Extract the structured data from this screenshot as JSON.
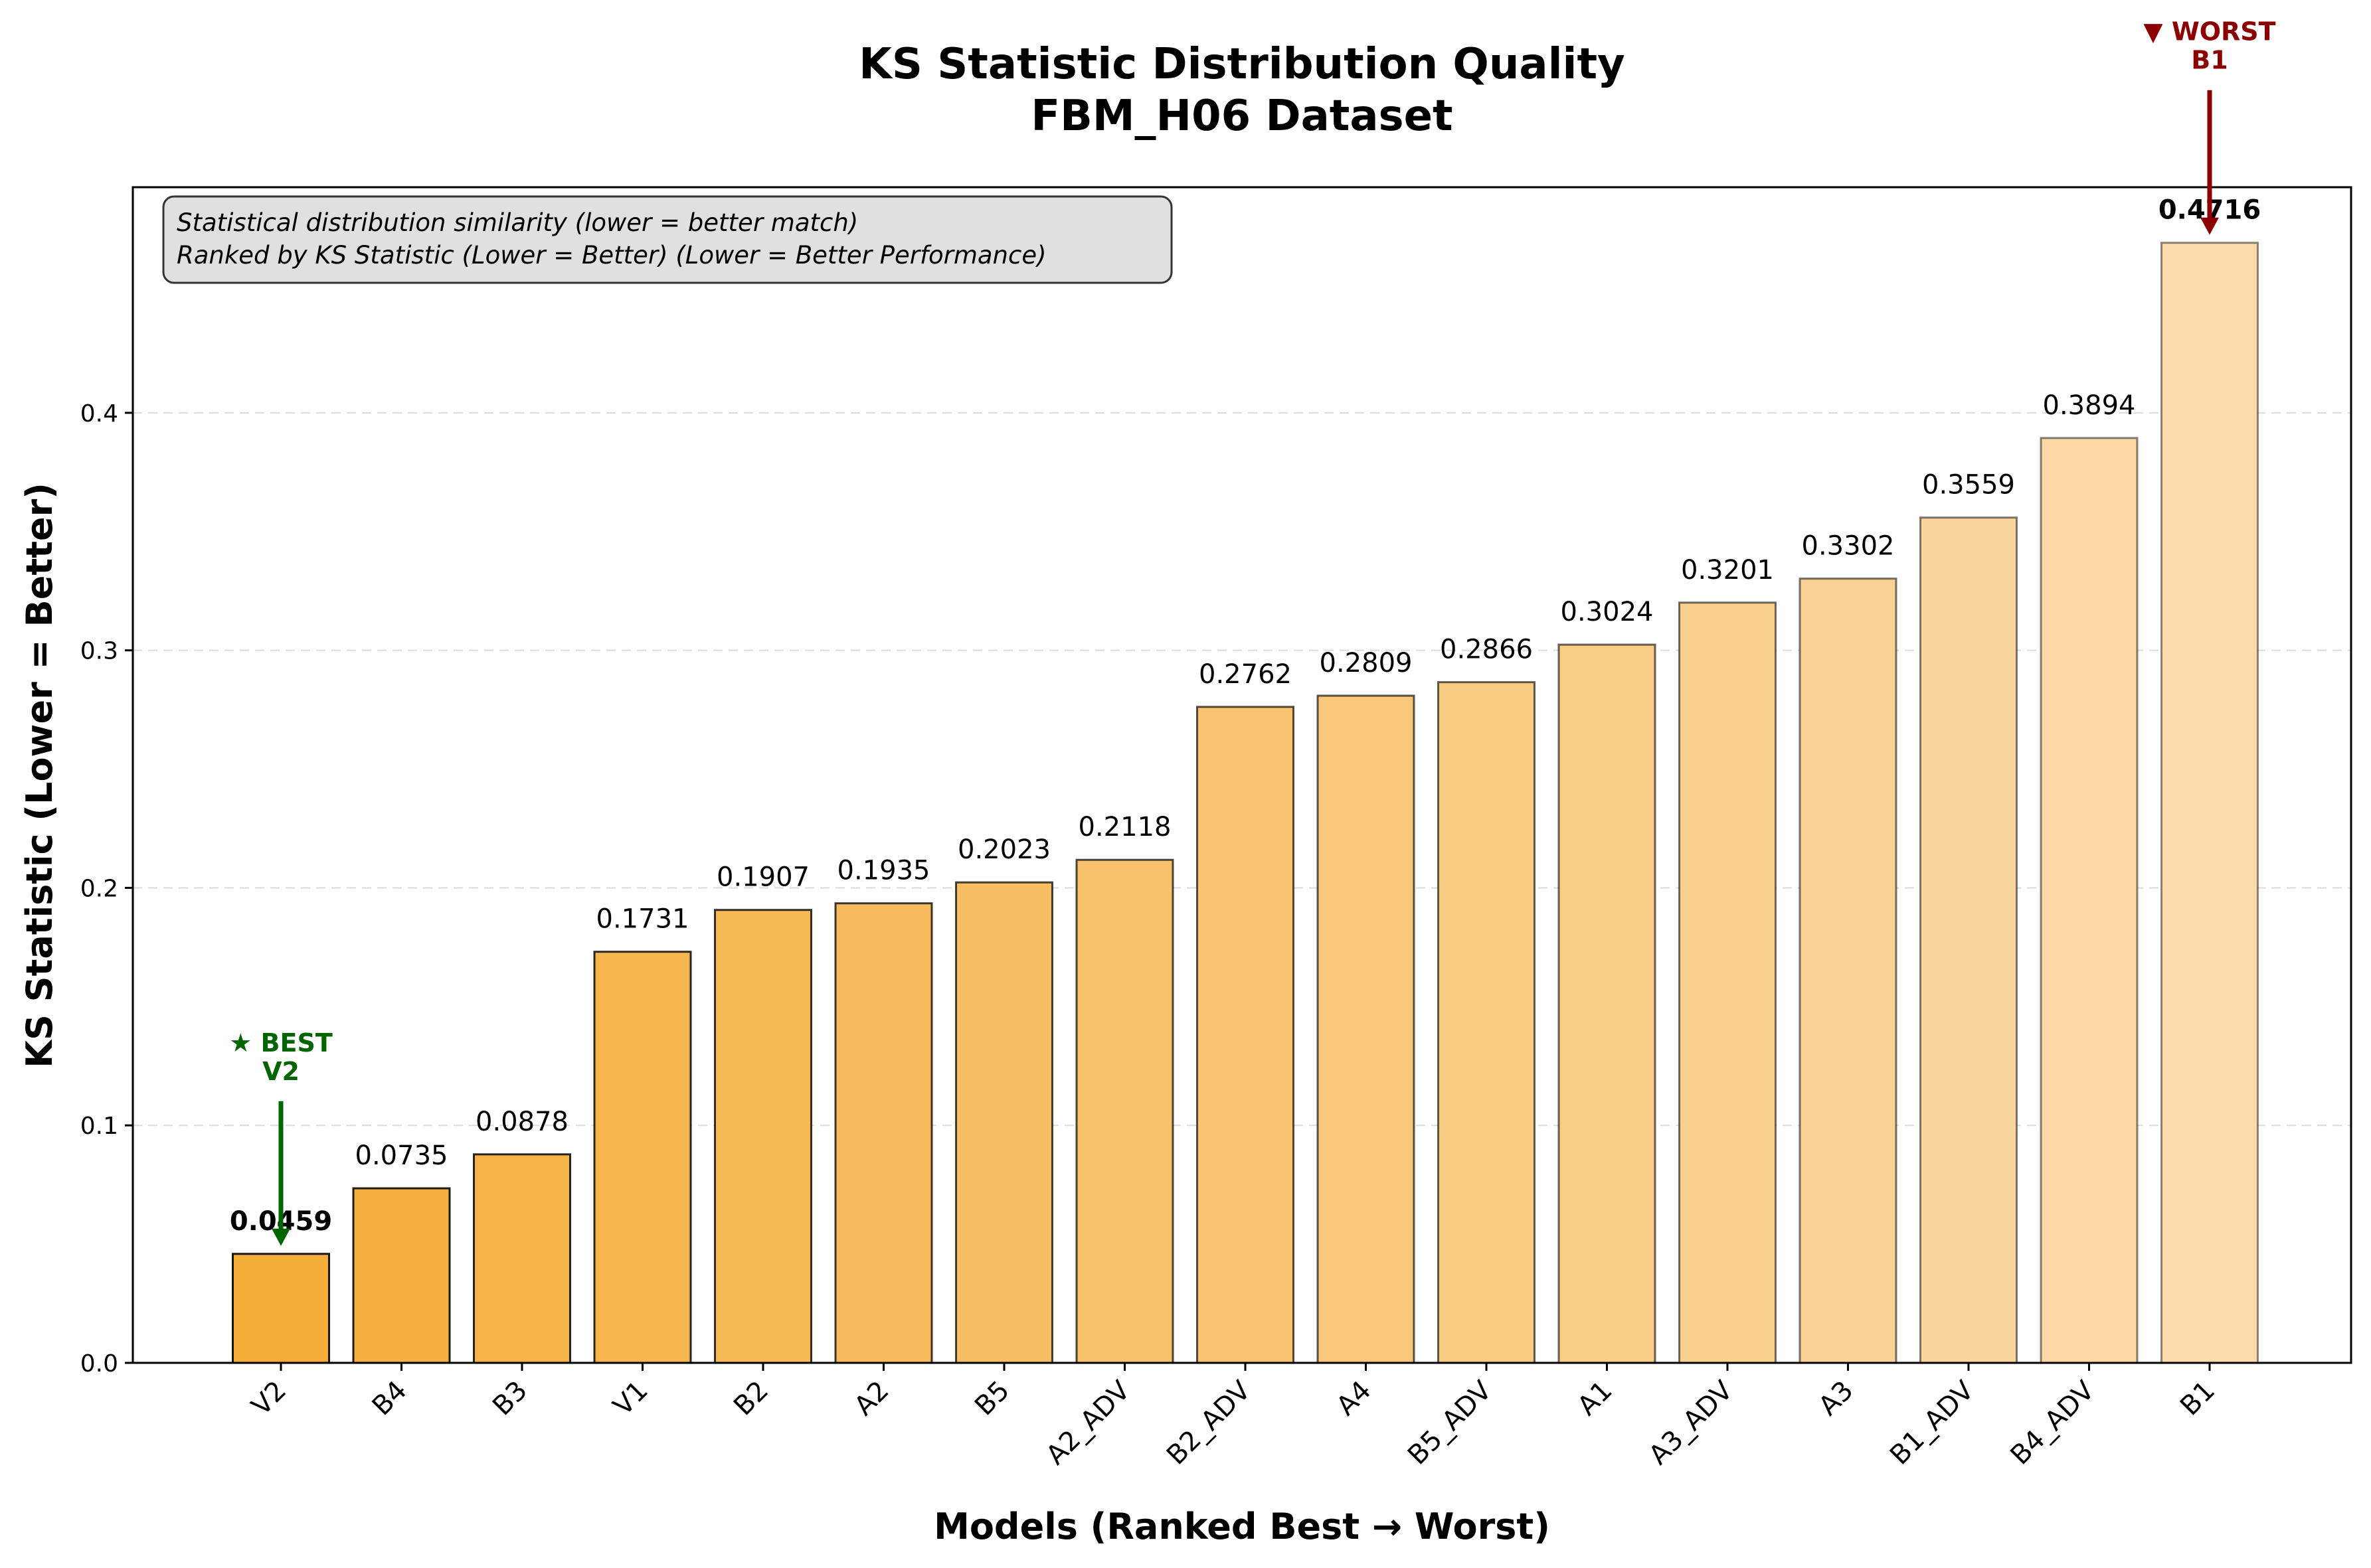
{
  "chart_data": {
    "type": "bar",
    "title": "KS Statistic Distribution Quality",
    "subtitle": "FBM_H06 Dataset",
    "xlabel": "Models (Ranked Best → Worst)",
    "ylabel": "KS Statistic (Lower = Better)",
    "ylim": [
      0,
      0.495
    ],
    "yticks": [
      0.0,
      0.1,
      0.2,
      0.3,
      0.4
    ],
    "ytick_labels": [
      "0.0",
      "0.1",
      "0.2",
      "0.3",
      "0.4"
    ],
    "grid": "y-dashed",
    "categories": [
      "V2",
      "B4",
      "B3",
      "V1",
      "B2",
      "A2",
      "B5",
      "A2_ADV",
      "B2_ADV",
      "A4",
      "B5_ADV",
      "A1",
      "A3_ADV",
      "A3",
      "B1_ADV",
      "B4_ADV",
      "B1"
    ],
    "values": [
      0.0459,
      0.0735,
      0.0878,
      0.1731,
      0.1907,
      0.1935,
      0.2023,
      0.2118,
      0.2762,
      0.2809,
      0.2866,
      0.3024,
      0.3201,
      0.3302,
      0.3559,
      0.3894,
      0.4716
    ],
    "value_labels": [
      "0.0459",
      "0.0735",
      "0.0878",
      "0.1731",
      "0.1907",
      "0.1935",
      "0.2023",
      "0.2118",
      "0.2762",
      "0.2809",
      "0.2866",
      "0.3024",
      "0.3201",
      "0.3302",
      "0.3559",
      "0.3894",
      "0.4716"
    ],
    "bar_color_start": "#f5ad3a",
    "bar_color_end": "#fbdbab",
    "note_lines": [
      "Statistical distribution similarity (lower = better match)",
      "Ranked by KS Statistic (Lower = Better) (Lower = Better Performance)"
    ],
    "best_annotation": {
      "line1": "★ BEST",
      "line2": "V2",
      "color": "#006400"
    },
    "worst_annotation": {
      "line1": "▼ WORST",
      "line2": "B1",
      "color": "#8b0000"
    }
  }
}
